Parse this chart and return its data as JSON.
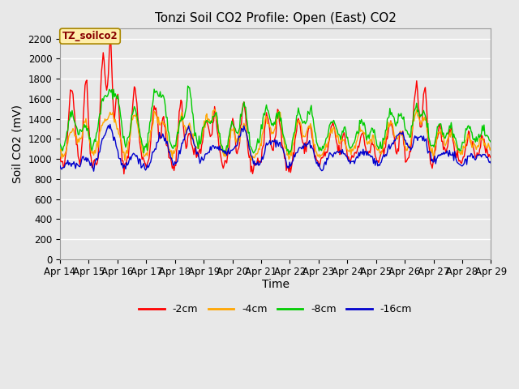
{
  "title": "Tonzi Soil CO2 Profile: Open (East) CO2",
  "ylabel": "Soil CO2 (mV)",
  "xlabel": "Time",
  "ylim": [
    0,
    2300
  ],
  "yticks": [
    0,
    200,
    400,
    600,
    800,
    1000,
    1200,
    1400,
    1600,
    1800,
    2000,
    2200
  ],
  "xtick_labels": [
    "Apr 14",
    "Apr 15",
    "Apr 16",
    "Apr 17",
    "Apr 18",
    "Apr 19",
    "Apr 20",
    "Apr 21",
    "Apr 22",
    "Apr 23",
    "Apr 24",
    "Apr 25",
    "Apr 26",
    "Apr 27",
    "Apr 28",
    "Apr 29"
  ],
  "legend_labels": [
    "-2cm",
    "-4cm",
    "-8cm",
    "-16cm"
  ],
  "line_colors": [
    "#ff0000",
    "#ffa500",
    "#00cc00",
    "#0000cd"
  ],
  "annotation_text": "TZ_soilco2",
  "annotation_fg": "#880000",
  "annotation_bg": "#ffeeaa",
  "annotation_edge": "#aa8800",
  "plot_bg_color": "#e8e8e8",
  "fig_bg_color": "#e8e8e8",
  "grid_color": "#ffffff",
  "title_fontsize": 11,
  "axis_fontsize": 10,
  "tick_fontsize": 8.5
}
